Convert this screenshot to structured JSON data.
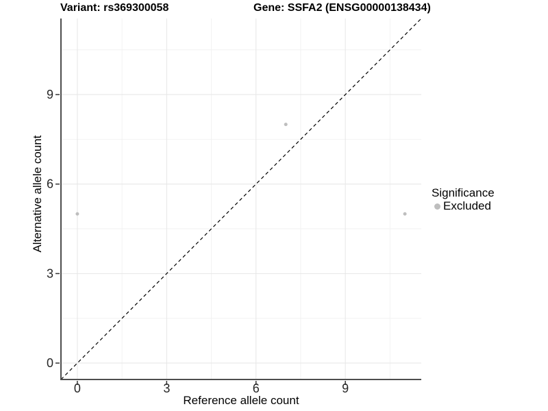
{
  "chart_data": {
    "type": "scatter",
    "title_left": "Variant: rs369300058",
    "title_right": "Gene: SSFA2 (ENSG00000138434)",
    "xlabel": "Reference allele count",
    "ylabel": "Alternative allele count",
    "xlim": [
      -0.55,
      11.55
    ],
    "ylim": [
      -0.55,
      11.55
    ],
    "x_ticks": [
      0,
      3,
      6,
      9
    ],
    "y_ticks": [
      0,
      3,
      6,
      9
    ],
    "minor_ticks": [
      1.5,
      4.5,
      7.5,
      10.5
    ],
    "grid": true,
    "reference_line": {
      "style": "dashed",
      "equation": "y = x",
      "color": "#000000"
    },
    "series": [
      {
        "name": "Excluded",
        "color": "#bebebe",
        "points": [
          {
            "x": 0,
            "y": 5
          },
          {
            "x": 7,
            "y": 8
          },
          {
            "x": 11,
            "y": 5
          }
        ]
      }
    ],
    "legend": {
      "position": "right",
      "title": "Significance",
      "items": [
        {
          "label": "Excluded",
          "color": "#bebebe",
          "marker": "circle-icon"
        }
      ]
    },
    "colors": {
      "background": "#ffffff",
      "grid_major": "#e6e6e6",
      "grid_minor": "#f2f2f2",
      "axis_line": "#4d4d4d",
      "tick": "#333333",
      "tick_label": "#262626",
      "point": "#bebebe"
    }
  }
}
